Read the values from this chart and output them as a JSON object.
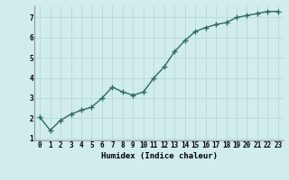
{
  "x": [
    0,
    1,
    2,
    3,
    4,
    5,
    6,
    7,
    8,
    9,
    10,
    11,
    12,
    13,
    14,
    15,
    16,
    17,
    18,
    19,
    20,
    21,
    22,
    23
  ],
  "y": [
    2.05,
    1.4,
    1.9,
    2.2,
    2.4,
    2.55,
    3.0,
    3.55,
    3.3,
    3.15,
    3.3,
    4.0,
    4.55,
    5.3,
    5.85,
    6.3,
    6.5,
    6.65,
    6.75,
    7.0,
    7.1,
    7.2,
    7.3,
    7.3
  ],
  "line_color": "#2e6b5e",
  "marker": "+",
  "marker_size": 4,
  "bg_color": "#d0ecec",
  "grid_color": "#b8d8d8",
  "xlabel": "Humidex (Indice chaleur)",
  "ylim": [
    0.9,
    7.6
  ],
  "xlim": [
    -0.5,
    23.5
  ],
  "yticks": [
    1,
    2,
    3,
    4,
    5,
    6,
    7
  ],
  "xticks": [
    0,
    1,
    2,
    3,
    4,
    5,
    6,
    7,
    8,
    9,
    10,
    11,
    12,
    13,
    14,
    15,
    16,
    17,
    18,
    19,
    20,
    21,
    22,
    23
  ],
  "xlabel_fontsize": 6.5,
  "tick_fontsize": 5.5,
  "line_width": 1.0
}
